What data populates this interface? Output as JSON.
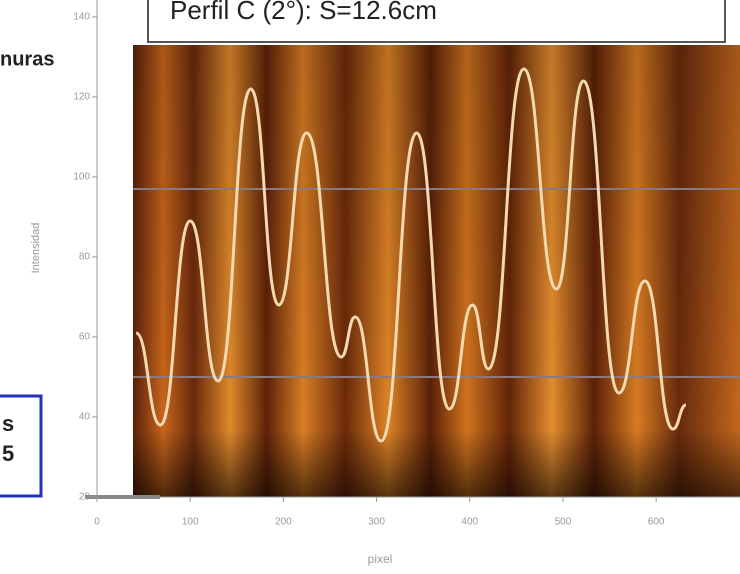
{
  "fragments": {
    "left_label": "nuras",
    "box_top": "s",
    "box_bottom": "5"
  },
  "chart_data": {
    "type": "line",
    "title": "Perfil C (2°):  S=12.6cm",
    "x_label": "pixel",
    "y_label": "Intensidad",
    "x": [
      42,
      68,
      100,
      130,
      165,
      195,
      225,
      262,
      277,
      305,
      343,
      378,
      403,
      420,
      458,
      493,
      522,
      560,
      588,
      618,
      632
    ],
    "series": [
      {
        "name": "Intensidad",
        "color": "#f3d9b0",
        "values": [
          61,
          38,
          89,
          49,
          122,
          68,
          111,
          55,
          65,
          34,
          111,
          42,
          68,
          52,
          127,
          72,
          124,
          46,
          74,
          37,
          43
        ]
      }
    ],
    "reference_lines": [
      97,
      50
    ],
    "xlim": [
      0,
      690
    ],
    "ylim": [
      20,
      140
    ],
    "xticks": [
      0,
      100,
      200,
      300,
      400,
      500,
      600
    ],
    "yticks": [
      20,
      40,
      60,
      80,
      100,
      120,
      140
    ]
  }
}
